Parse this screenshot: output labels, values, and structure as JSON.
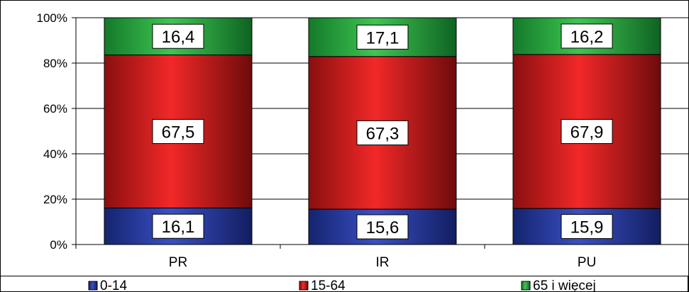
{
  "chart_data": {
    "type": "bar",
    "stacked": true,
    "percent": true,
    "categories": [
      "PR",
      "IR",
      "PU"
    ],
    "series": [
      {
        "name": "0-14",
        "values": [
          16.1,
          15.6,
          15.9
        ],
        "labels": [
          "16,1",
          "15,6",
          "15,9"
        ],
        "color": "#1e2f8f"
      },
      {
        "name": "15-64",
        "values": [
          67.5,
          67.3,
          67.9
        ],
        "labels": [
          "67,5",
          "67,3",
          "67,9"
        ],
        "color": "#e01e1e"
      },
      {
        "name": "65 i więcej",
        "values": [
          16.4,
          17.1,
          16.2
        ],
        "labels": [
          "16,4",
          "17,1",
          "16,2"
        ],
        "color": "#1f9a3a"
      }
    ],
    "y_ticks": [
      "0%",
      "20%",
      "40%",
      "60%",
      "80%",
      "100%"
    ],
    "ylim": [
      0,
      100
    ],
    "grid": true,
    "legend_position": "bottom"
  }
}
